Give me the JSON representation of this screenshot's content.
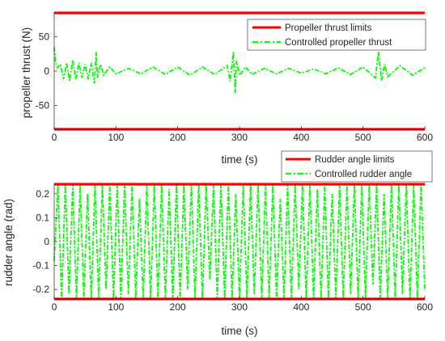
{
  "colors": {
    "limit": "#ff0000",
    "controlled": "#00ff00",
    "axis": "#262626",
    "background": "#ffffff"
  },
  "chart_data": [
    {
      "type": "line",
      "xlabel": "time (s)",
      "ylabel": "propeller thrust (N)",
      "xlim": [
        0,
        600
      ],
      "ylim": [
        -85,
        85
      ],
      "xticks": [
        "0",
        "100",
        "200",
        "300",
        "400",
        "500",
        "600"
      ],
      "yticks": [
        "-50",
        "0",
        "50"
      ],
      "grid": false,
      "legend_position": "top-right",
      "series": [
        {
          "name": "Propeller thrust limits",
          "style": "solid",
          "color": "#ff0000",
          "upper": 85,
          "lower": -85
        },
        {
          "name": "Controlled propeller thrust",
          "style": "dash-dot",
          "color": "#00ff00",
          "x": [
            0,
            2,
            5,
            10,
            15,
            20,
            25,
            30,
            35,
            40,
            45,
            50,
            55,
            60,
            65,
            68,
            70,
            75,
            80,
            90,
            100,
            120,
            140,
            160,
            180,
            200,
            220,
            240,
            260,
            280,
            285,
            290,
            293,
            295,
            300,
            310,
            320,
            340,
            360,
            380,
            400,
            420,
            440,
            460,
            480,
            500,
            520,
            525,
            530,
            535,
            540,
            560,
            580,
            600
          ],
          "y": [
            35,
            15,
            5,
            10,
            -12,
            12,
            -14,
            16,
            -12,
            12,
            -10,
            10,
            -12,
            12,
            -18,
            28,
            -10,
            10,
            -6,
            6,
            -4,
            4,
            -4,
            6,
            -5,
            6,
            -6,
            6,
            -5,
            8,
            -15,
            28,
            -32,
            15,
            -6,
            6,
            -5,
            4,
            -4,
            4,
            -3,
            3,
            -4,
            5,
            -5,
            6,
            -10,
            28,
            -14,
            10,
            -8,
            8,
            -6,
            5
          ]
        }
      ]
    },
    {
      "type": "line",
      "xlabel": "time (s)",
      "ylabel": "rudder angle (rad)",
      "xlim": [
        0,
        600
      ],
      "ylim": [
        -0.24,
        0.24
      ],
      "xticks": [
        "0",
        "100",
        "200",
        "300",
        "400",
        "500",
        "600"
      ],
      "yticks": [
        "-0.2",
        "-0.1",
        "0",
        "0.1",
        "0.2"
      ],
      "grid": false,
      "legend_position": "top-right",
      "series": [
        {
          "name": "Rudder angle limits",
          "style": "solid",
          "color": "#ff0000",
          "upper": 0.24,
          "lower": -0.24
        },
        {
          "name": "Controlled rudder angle",
          "style": "dash-dot",
          "color": "#00ff00",
          "x": [
            0,
            6,
            12,
            18,
            24,
            30,
            36,
            42,
            48,
            54,
            60,
            66,
            72,
            78,
            84,
            90,
            96,
            102,
            108,
            114,
            120,
            126,
            132,
            138,
            144,
            150,
            156,
            162,
            168,
            174,
            180,
            186,
            192,
            198,
            204,
            210,
            216,
            222,
            228,
            234,
            240,
            246,
            252,
            258,
            264,
            270,
            276,
            282,
            288,
            294,
            300,
            306,
            312,
            318,
            324,
            330,
            336,
            342,
            348,
            354,
            360,
            366,
            372,
            378,
            384,
            390,
            396,
            402,
            408,
            414,
            420,
            426,
            432,
            438,
            444,
            450,
            456,
            462,
            468,
            474,
            480,
            486,
            492,
            498,
            504,
            510,
            516,
            522,
            528,
            534,
            540,
            546,
            552,
            558,
            564,
            570,
            576,
            582,
            588,
            594,
            600
          ],
          "y": [
            -0.08,
            0.24,
            -0.24,
            0.24,
            -0.22,
            0.24,
            -0.24,
            0.24,
            -0.24,
            0.2,
            -0.24,
            0.24,
            -0.24,
            0.24,
            -0.2,
            0.24,
            -0.24,
            0.24,
            -0.24,
            0.24,
            -0.22,
            0.24,
            -0.24,
            0.18,
            -0.24,
            0.24,
            -0.24,
            0.24,
            -0.24,
            0.24,
            -0.24,
            0.22,
            -0.24,
            0.24,
            -0.24,
            0.24,
            -0.2,
            0.24,
            -0.24,
            0.24,
            -0.24,
            0.24,
            -0.16,
            0.24,
            -0.24,
            0.24,
            -0.24,
            0.24,
            -0.24,
            0.2,
            -0.24,
            0.24,
            -0.24,
            0.24,
            -0.22,
            0.24,
            -0.24,
            0.24,
            -0.24,
            0.24,
            -0.24,
            0.18,
            -0.24,
            0.24,
            -0.24,
            0.24,
            -0.2,
            0.24,
            -0.24,
            0.24,
            -0.24,
            0.22,
            -0.24,
            0.24,
            -0.24,
            0.2,
            -0.24,
            0.24,
            -0.24,
            0.24,
            -0.22,
            0.24,
            -0.24,
            0.24,
            -0.24,
            0.24,
            -0.18,
            0.24,
            -0.24,
            0.2,
            -0.24,
            0.24,
            -0.24,
            0.24,
            -0.22,
            0.24,
            -0.24,
            0.24,
            -0.24,
            0.24,
            -0.2
          ]
        }
      ]
    }
  ]
}
